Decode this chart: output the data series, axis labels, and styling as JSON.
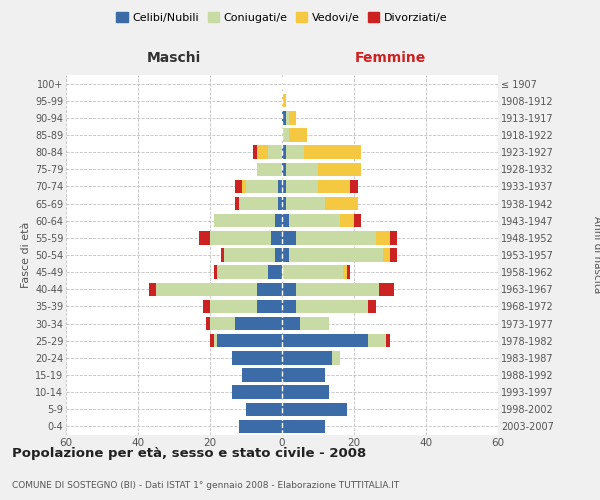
{
  "age_groups": [
    "0-4",
    "5-9",
    "10-14",
    "15-19",
    "20-24",
    "25-29",
    "30-34",
    "35-39",
    "40-44",
    "45-49",
    "50-54",
    "55-59",
    "60-64",
    "65-69",
    "70-74",
    "75-79",
    "80-84",
    "85-89",
    "90-94",
    "95-99",
    "100+"
  ],
  "birth_years": [
    "2003-2007",
    "1998-2002",
    "1993-1997",
    "1988-1992",
    "1983-1987",
    "1978-1982",
    "1973-1977",
    "1968-1972",
    "1963-1967",
    "1958-1962",
    "1953-1957",
    "1948-1952",
    "1943-1947",
    "1938-1942",
    "1933-1937",
    "1928-1932",
    "1923-1927",
    "1918-1922",
    "1913-1917",
    "1908-1912",
    "≤ 1907"
  ],
  "maschi": {
    "celibi": [
      12,
      10,
      14,
      11,
      14,
      18,
      13,
      7,
      7,
      4,
      2,
      3,
      2,
      1,
      1,
      0,
      0,
      0,
      0,
      0,
      0
    ],
    "coniugati": [
      0,
      0,
      0,
      0,
      0,
      1,
      7,
      13,
      28,
      14,
      14,
      17,
      17,
      11,
      9,
      7,
      4,
      0,
      0,
      0,
      0
    ],
    "vedovi": [
      0,
      0,
      0,
      0,
      0,
      0,
      0,
      0,
      0,
      0,
      0,
      0,
      0,
      0,
      1,
      0,
      3,
      0,
      0,
      0,
      0
    ],
    "divorziati": [
      0,
      0,
      0,
      0,
      0,
      1,
      1,
      2,
      2,
      1,
      1,
      3,
      0,
      1,
      2,
      0,
      1,
      0,
      0,
      0,
      0
    ]
  },
  "femmine": {
    "nubili": [
      12,
      18,
      13,
      12,
      14,
      24,
      5,
      4,
      4,
      0,
      2,
      4,
      2,
      1,
      1,
      1,
      1,
      0,
      1,
      0,
      0
    ],
    "coniugate": [
      0,
      0,
      0,
      0,
      2,
      5,
      8,
      20,
      23,
      17,
      26,
      22,
      14,
      11,
      9,
      9,
      5,
      2,
      1,
      0,
      0
    ],
    "vedove": [
      0,
      0,
      0,
      0,
      0,
      0,
      0,
      0,
      0,
      1,
      2,
      4,
      4,
      9,
      9,
      12,
      16,
      5,
      2,
      1,
      0
    ],
    "divorziate": [
      0,
      0,
      0,
      0,
      0,
      1,
      0,
      2,
      4,
      1,
      2,
      2,
      2,
      0,
      2,
      0,
      0,
      0,
      0,
      0,
      0
    ]
  },
  "colors": {
    "celibi": "#3b6ca8",
    "coniugati": "#c8dba4",
    "vedovi": "#f5c842",
    "divorziati": "#cc2222"
  },
  "title": "Popolazione per età, sesso e stato civile - 2008",
  "subtitle": "COMUNE DI SOSTEGNO (BI) - Dati ISTAT 1° gennaio 2008 - Elaborazione TUTTITALIA.IT",
  "xlabel_left": "Maschi",
  "xlabel_right": "Femmine",
  "ylabel_left": "Fasce di età",
  "ylabel_right": "Anni di nascita",
  "xlim": 60,
  "legend_labels": [
    "Celibi/Nubili",
    "Coniugati/e",
    "Vedovi/e",
    "Divorziati/e"
  ],
  "bg_color": "#f0f0f0",
  "plot_bg": "#ffffff"
}
